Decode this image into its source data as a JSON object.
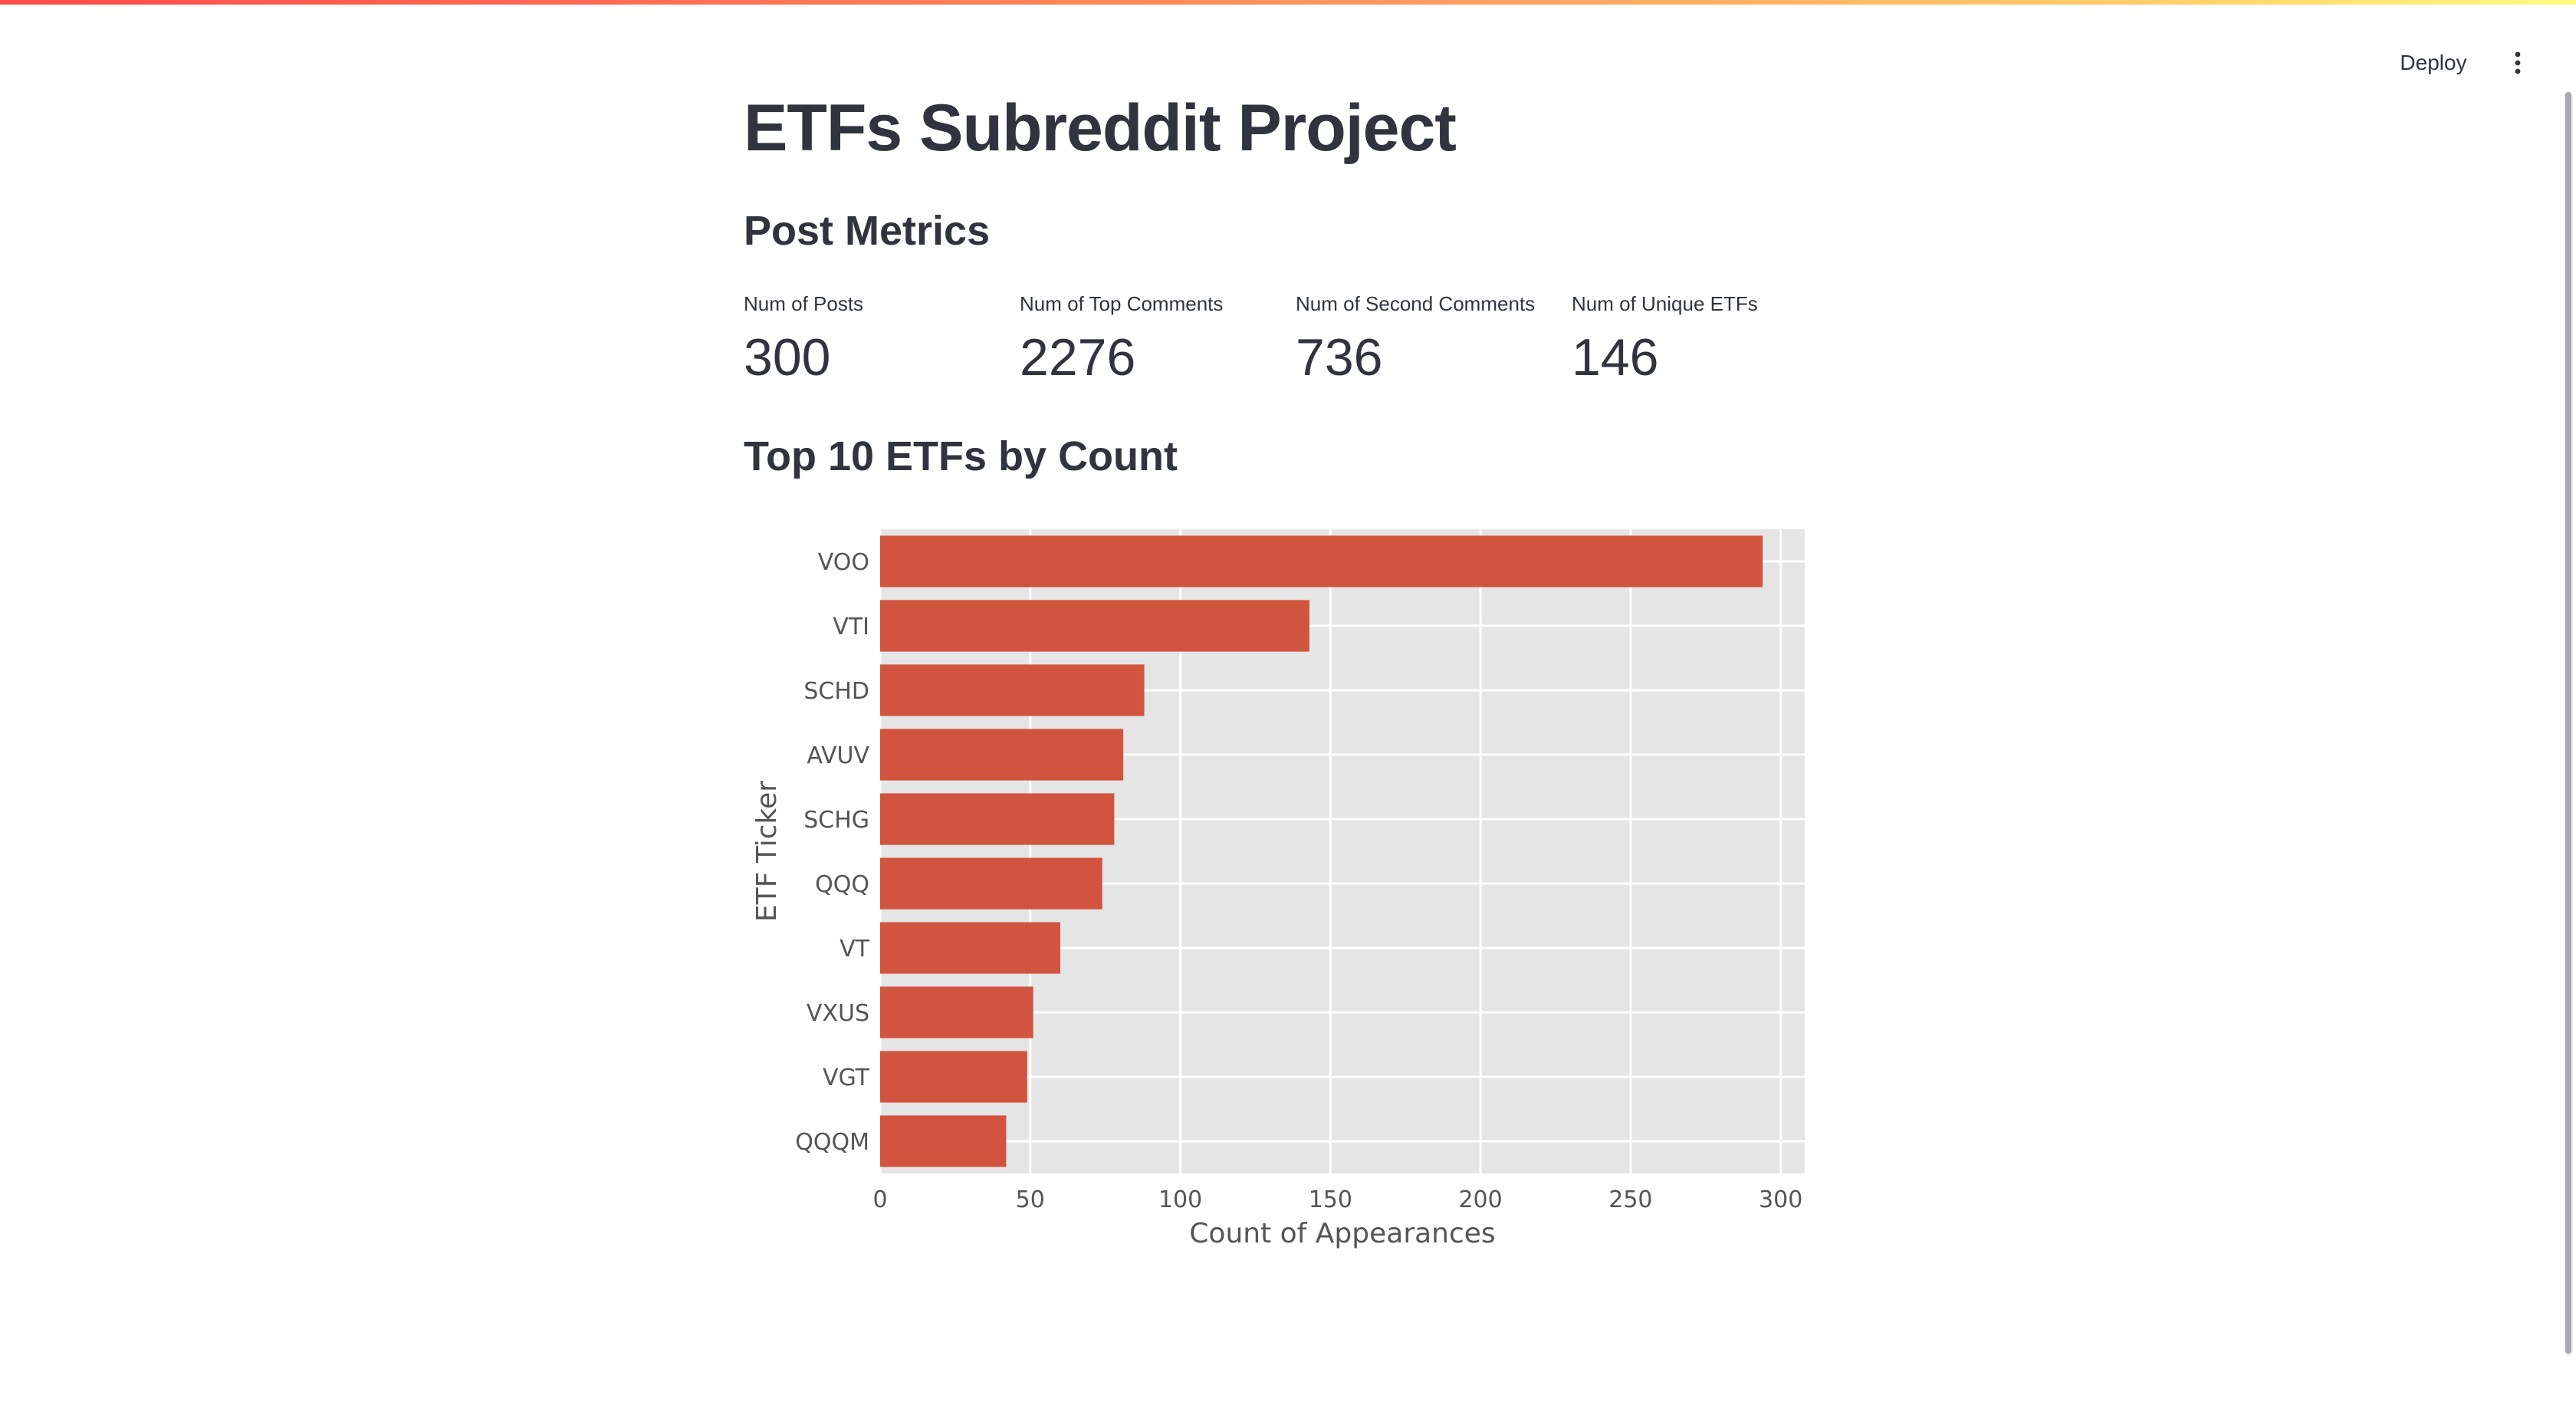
{
  "header": {
    "deploy_label": "Deploy",
    "menu_icon": "vertical-ellipsis-icon"
  },
  "page": {
    "title": "ETFs Subreddit Project"
  },
  "metrics_section": {
    "title": "Post Metrics",
    "metrics": [
      {
        "label": "Num of Posts",
        "value": "300"
      },
      {
        "label": "Num of Top Comments",
        "value": "2276"
      },
      {
        "label": "Num of Second Comments",
        "value": "736"
      },
      {
        "label": "Num of Unique ETFs",
        "value": "146"
      }
    ]
  },
  "chart_section": {
    "title": "Top 10 ETFs by Count"
  },
  "colors": {
    "accent": "#ff4b4b",
    "bar": "#d1553e",
    "plot_background": "#e5e5e5",
    "text": "#31333f"
  },
  "chart_data": {
    "type": "bar",
    "orientation": "horizontal",
    "categories": [
      "VOO",
      "VTI",
      "SCHD",
      "AVUV",
      "SCHG",
      "QQQ",
      "VT",
      "VXUS",
      "VGT",
      "QQQM"
    ],
    "values": [
      294,
      143,
      88,
      81,
      78,
      74,
      60,
      51,
      49,
      42
    ],
    "title": "",
    "xlabel": "Count of Appearances",
    "ylabel": "ETF Ticker",
    "xlim": [
      0,
      308
    ],
    "xticks": [
      0,
      50,
      100,
      150,
      200,
      250,
      300
    ],
    "grid": true,
    "legend": "none"
  }
}
